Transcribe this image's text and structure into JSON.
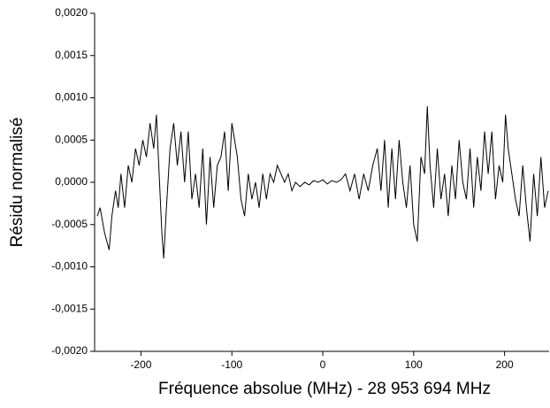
{
  "chart_data": {
    "type": "line",
    "x_label": "Fréquence absolue (MHz) - 28 953 694 MHz",
    "y_label": "Résidu normalisé",
    "xlim": [
      -251,
      249
    ],
    "ylim": [
      -0.002,
      0.002
    ],
    "xticks": [
      -200,
      -100,
      0,
      100,
      200
    ],
    "yticks": [
      {
        "value": 0.002,
        "label": "0,0020"
      },
      {
        "value": 0.0015,
        "label": "0,0015"
      },
      {
        "value": 0.001,
        "label": "0,0010"
      },
      {
        "value": 0.0005,
        "label": "0,0005"
      },
      {
        "value": 0,
        "label": "0,0000"
      },
      {
        "value": -0.0005,
        "label": "-0,0005"
      },
      {
        "value": -0.001,
        "label": "-0,0010"
      },
      {
        "value": -0.0015,
        "label": "-0,0015"
      },
      {
        "value": -0.002,
        "label": "-0,0020"
      }
    ],
    "x": [
      -248,
      -245,
      -240,
      -235,
      -232,
      -228,
      -225,
      -222,
      -218,
      -214,
      -210,
      -206,
      -202,
      -198,
      -194,
      -190,
      -186,
      -183,
      -180,
      -177,
      -175,
      -172,
      -168,
      -164,
      -160,
      -156,
      -152,
      -148,
      -144,
      -140,
      -136,
      -132,
      -128,
      -124,
      -120,
      -116,
      -112,
      -108,
      -104,
      -100,
      -97,
      -94,
      -90,
      -86,
      -82,
      -78,
      -74,
      -70,
      -66,
      -62,
      -58,
      -54,
      -50,
      -46,
      -42,
      -38,
      -34,
      -30,
      -25,
      -20,
      -15,
      -10,
      -5,
      0,
      5,
      10,
      15,
      20,
      25,
      30,
      35,
      40,
      45,
      50,
      55,
      60,
      64,
      68,
      72,
      76,
      80,
      84,
      88,
      92,
      96,
      100,
      104,
      108,
      112,
      115,
      118,
      122,
      126,
      130,
      134,
      138,
      142,
      146,
      150,
      154,
      158,
      162,
      166,
      170,
      174,
      178,
      182,
      186,
      190,
      194,
      198,
      201,
      204,
      208,
      212,
      216,
      220,
      224,
      228,
      232,
      236,
      240,
      244,
      248
    ],
    "series": [
      {
        "color": "#000000",
        "values": [
          -0.0004,
          -0.0003,
          -0.0006,
          -0.0008,
          -0.0004,
          -0.0001,
          -0.0003,
          0.0001,
          -0.0003,
          0.0002,
          0,
          0.0004,
          0.0002,
          0.0005,
          0.0003,
          0.0007,
          0.0004,
          0.0008,
          0.0001,
          -0.0006,
          -0.0009,
          -0.0003,
          0.0004,
          0.0007,
          0.0002,
          0.0006,
          0,
          0.0006,
          -0.0002,
          0.0001,
          -0.0003,
          0.0004,
          -0.0005,
          0.0003,
          -0.0003,
          0.0002,
          0.0003,
          0.0006,
          -0.0001,
          0.0007,
          0.0005,
          0.0003,
          -0.0002,
          -0.0004,
          0.0001,
          -0.0002,
          0,
          -0.0003,
          0.0001,
          -0.0002,
          0.0001,
          0,
          0.0002,
          0.0001,
          0,
          0.0001,
          -0.0001,
          0,
          -5e-05,
          0,
          -3e-05,
          2e-05,
          0,
          3e-05,
          -2e-05,
          2e-05,
          0,
          3e-05,
          0.0001,
          -0.0001,
          0.0001,
          -0.0002,
          0.0001,
          -0.0001,
          0.0002,
          0.0004,
          -0.0001,
          0.0005,
          -0.0003,
          0.0004,
          -0.0002,
          0.0005,
          0,
          -0.0003,
          0.0002,
          -0.0005,
          -0.0007,
          0.0003,
          0.0001,
          0.0009,
          0.0002,
          -0.0003,
          0.0004,
          -0.0002,
          0.0001,
          -0.0004,
          0.0002,
          -0.0002,
          0.0005,
          0,
          -0.0002,
          0.0004,
          -0.0003,
          0.0003,
          -0.0001,
          0.0006,
          0.0001,
          0.0006,
          -0.0002,
          0.0002,
          0,
          0.0008,
          0.0004,
          0.0001,
          -0.0002,
          -0.0004,
          0.0002,
          -0.0003,
          -0.0007,
          0.0001,
          -0.0004,
          0.0003,
          -0.0003,
          -0.0001
        ]
      }
    ]
  }
}
